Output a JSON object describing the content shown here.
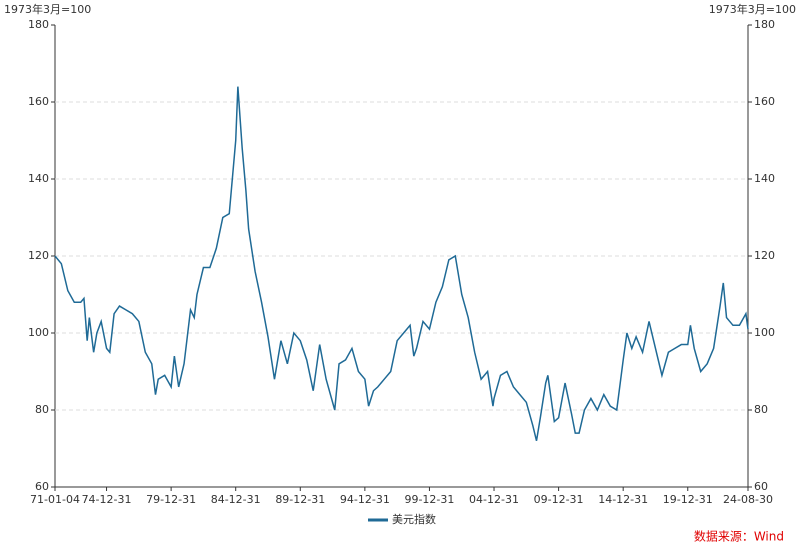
{
  "chart_data": {
    "type": "line",
    "y_unit_left": "1973年3月=100",
    "y_unit_right": "1973年3月=100",
    "source": "数据来源：Wind",
    "x": [
      "71-01-04",
      "71-07-01",
      "72-01-01",
      "72-07-01",
      "73-01-01",
      "73-04-01",
      "73-07-01",
      "73-09-01",
      "74-01-01",
      "74-04-01",
      "74-08-01",
      "75-01-01",
      "75-04-01",
      "75-08-01",
      "76-01-01",
      "76-07-01",
      "77-01-01",
      "77-07-01",
      "78-01-01",
      "78-07-01",
      "78-10-15",
      "79-01-01",
      "79-07-01",
      "80-01-01",
      "80-04-01",
      "80-08-01",
      "81-01-01",
      "81-07-01",
      "81-10-15",
      "82-01-01",
      "82-07-01",
      "83-01-01",
      "83-07-01",
      "84-01-01",
      "84-07-01",
      "85-01-01",
      "85-03-01",
      "85-07-01",
      "85-10-15",
      "86-01-01",
      "86-07-01",
      "87-01-01",
      "87-07-01",
      "88-01-01",
      "88-07-01",
      "89-01-01",
      "89-07-01",
      "90-01-01",
      "90-07-01",
      "91-01-01",
      "91-07-01",
      "92-01-01",
      "92-09-01",
      "93-01-01",
      "93-07-01",
      "94-01-01",
      "94-07-01",
      "95-01-01",
      "95-04-15",
      "95-09-01",
      "96-01-01",
      "96-07-01",
      "97-01-01",
      "97-07-01",
      "98-01-01",
      "98-07-01",
      "98-10-15",
      "99-01-01",
      "99-07-01",
      "00-01-01",
      "00-07-01",
      "01-01-01",
      "01-07-01",
      "02-01-01",
      "02-07-01",
      "03-01-01",
      "03-07-01",
      "04-01-01",
      "04-07-01",
      "04-12-01",
      "05-01-01",
      "05-07-01",
      "06-01-01",
      "06-07-01",
      "07-01-01",
      "07-07-01",
      "08-01-01",
      "08-04-15",
      "08-08-01",
      "09-01-01",
      "09-03-01",
      "09-09-01",
      "10-01-01",
      "10-07-01",
      "11-01-01",
      "11-04-15",
      "11-08-01",
      "12-01-01",
      "12-07-01",
      "13-01-01",
      "13-07-01",
      "14-01-01",
      "14-07-01",
      "15-01-01",
      "15-04-15",
      "15-09-01",
      "16-01-01",
      "16-07-01",
      "17-01-01",
      "17-07-01",
      "18-01-01",
      "18-07-01",
      "19-01-01",
      "19-07-01",
      "20-01-01",
      "20-03-15",
      "20-07-01",
      "21-01-01",
      "21-07-01",
      "22-01-01",
      "22-07-01",
      "22-10-01",
      "23-01-01",
      "23-07-01",
      "24-01-01",
      "24-07-01",
      "24-08-30"
    ],
    "series": [
      {
        "name": "美元指数",
        "color": "#1f6a96",
        "values": [
          120,
          118,
          111,
          108,
          108,
          109,
          98,
          104,
          95,
          100,
          103,
          96,
          95,
          105,
          107,
          106,
          105,
          103,
          95,
          92,
          84,
          88,
          89,
          86,
          94,
          86,
          92,
          106,
          104,
          110,
          117,
          117,
          122,
          130,
          131,
          150,
          164,
          148,
          137,
          127,
          116,
          108,
          99,
          88,
          98,
          92,
          100,
          98,
          93,
          85,
          97,
          88,
          80,
          92,
          93,
          96,
          90,
          88,
          81,
          85,
          86,
          88,
          90,
          98,
          100,
          102,
          94,
          96,
          103,
          101,
          108,
          112,
          119,
          120,
          110,
          104,
          95,
          88,
          90,
          81,
          83,
          89,
          90,
          86,
          84,
          82,
          76,
          72,
          78,
          87,
          89,
          77,
          78,
          87,
          79,
          74,
          74,
          80,
          83,
          80,
          84,
          81,
          80,
          93,
          100,
          96,
          99,
          95,
          103,
          96,
          89,
          95,
          96,
          97,
          97,
          102,
          96,
          90,
          92,
          96,
          107,
          113,
          104,
          102,
          102,
          105,
          101
        ]
      }
    ],
    "xticks": [
      "71-01-04",
      "74-12-31",
      "79-12-31",
      "84-12-31",
      "89-12-31",
      "94-12-31",
      "99-12-31",
      "04-12-31",
      "09-12-31",
      "14-12-31",
      "19-12-31",
      "24-08-30"
    ],
    "ylim": [
      60,
      180
    ],
    "yticks": [
      60,
      80,
      100,
      120,
      140,
      160,
      180
    ],
    "y2lim": [
      60,
      180
    ],
    "y2ticks": [
      60,
      80,
      100,
      120,
      140,
      160,
      180
    ],
    "grid": true
  }
}
